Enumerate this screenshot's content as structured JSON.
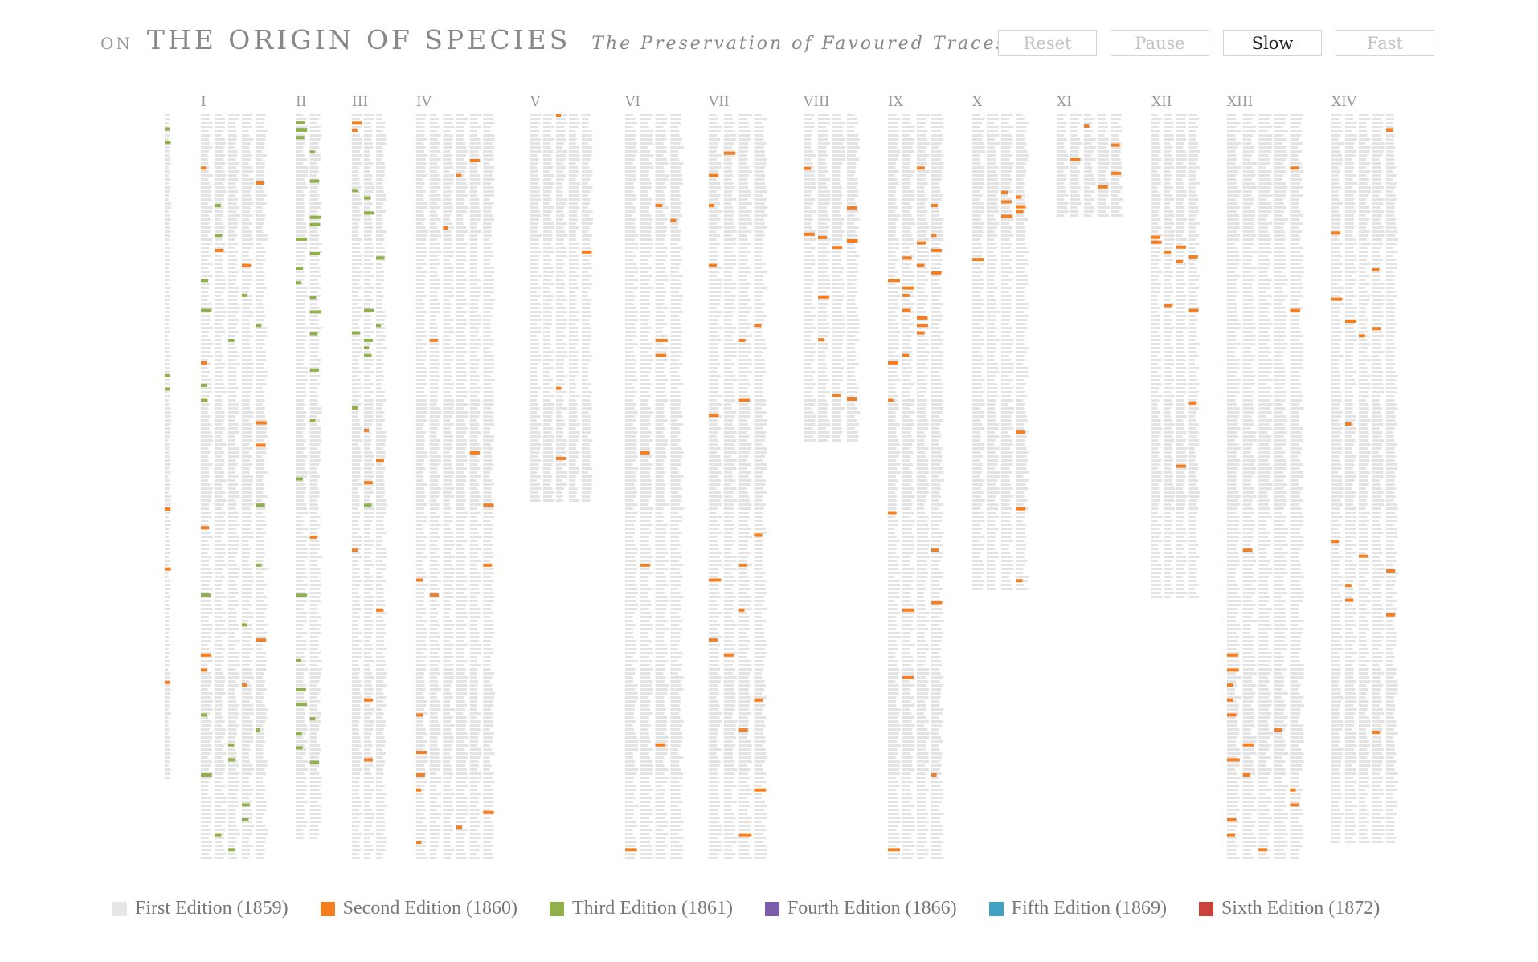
{
  "header": {
    "prefix": "ON",
    "title": "THE ORIGIN OF SPECIES",
    "subtitle": "The Preservation of Favoured Traces"
  },
  "controls": [
    {
      "label": "Reset",
      "active": false
    },
    {
      "label": "Pause",
      "active": false
    },
    {
      "label": "Slow",
      "active": true
    },
    {
      "label": "Fast",
      "active": false
    }
  ],
  "colors": {
    "unchanged": "#e3e3e3",
    "chapter_label": "#999999",
    "button_border": "#d4d4d4"
  },
  "chart_data": {
    "type": "heatmap",
    "title": "",
    "description_x": "chapters",
    "chapters": [
      {
        "label": "",
        "rel_length": 0.89,
        "changes": [
          [
            0.02,
            "third"
          ],
          [
            0.04,
            "third"
          ],
          [
            0.39,
            "third"
          ],
          [
            0.41,
            "third"
          ],
          [
            0.59,
            "second"
          ],
          [
            0.68,
            "second"
          ],
          [
            0.85,
            "second"
          ]
        ]
      },
      {
        "label": "I",
        "rel_length": 1.0,
        "changes": [
          [
            0.07,
            "second"
          ],
          [
            0.09,
            "second"
          ],
          [
            0.12,
            "third"
          ],
          [
            0.16,
            "third"
          ],
          [
            0.18,
            "second"
          ],
          [
            0.2,
            "second"
          ],
          [
            0.22,
            "third"
          ],
          [
            0.24,
            "third"
          ],
          [
            0.26,
            "third"
          ],
          [
            0.28,
            "third"
          ],
          [
            0.3,
            "third"
          ],
          [
            0.33,
            "second"
          ],
          [
            0.36,
            "third"
          ],
          [
            0.38,
            "third"
          ],
          [
            0.41,
            "second"
          ],
          [
            0.44,
            "second"
          ],
          [
            0.52,
            "third"
          ],
          [
            0.55,
            "second"
          ],
          [
            0.6,
            "third"
          ],
          [
            0.64,
            "third"
          ],
          [
            0.68,
            "third"
          ],
          [
            0.7,
            "second"
          ],
          [
            0.72,
            "second"
          ],
          [
            0.74,
            "second"
          ],
          [
            0.76,
            "second"
          ],
          [
            0.8,
            "third"
          ],
          [
            0.82,
            "third"
          ],
          [
            0.84,
            "third"
          ],
          [
            0.86,
            "third"
          ],
          [
            0.88,
            "third"
          ],
          [
            0.92,
            "third"
          ],
          [
            0.94,
            "third"
          ],
          [
            0.96,
            "third"
          ],
          [
            0.98,
            "third"
          ]
        ]
      },
      {
        "label": "II",
        "rel_length": 0.97,
        "changes": [
          [
            0.01,
            "third"
          ],
          [
            0.02,
            "third"
          ],
          [
            0.03,
            "third"
          ],
          [
            0.05,
            "third"
          ],
          [
            0.09,
            "third"
          ],
          [
            0.14,
            "third"
          ],
          [
            0.15,
            "third"
          ],
          [
            0.17,
            "third"
          ],
          [
            0.19,
            "third"
          ],
          [
            0.21,
            "third"
          ],
          [
            0.23,
            "third"
          ],
          [
            0.25,
            "third"
          ],
          [
            0.27,
            "third"
          ],
          [
            0.3,
            "third"
          ],
          [
            0.35,
            "third"
          ],
          [
            0.42,
            "third"
          ],
          [
            0.5,
            "third"
          ],
          [
            0.58,
            "second"
          ],
          [
            0.66,
            "third"
          ],
          [
            0.75,
            "third"
          ],
          [
            0.79,
            "third"
          ],
          [
            0.81,
            "third"
          ],
          [
            0.83,
            "third"
          ],
          [
            0.85,
            "third"
          ],
          [
            0.87,
            "third"
          ],
          [
            0.89,
            "third"
          ]
        ]
      },
      {
        "label": "III",
        "rel_length": 1.0,
        "changes": [
          [
            0.01,
            "second"
          ],
          [
            0.02,
            "second"
          ],
          [
            0.1,
            "third"
          ],
          [
            0.11,
            "third"
          ],
          [
            0.13,
            "third"
          ],
          [
            0.19,
            "third"
          ],
          [
            0.26,
            "third"
          ],
          [
            0.28,
            "third"
          ],
          [
            0.29,
            "third"
          ],
          [
            0.3,
            "third"
          ],
          [
            0.31,
            "third"
          ],
          [
            0.32,
            "third"
          ],
          [
            0.39,
            "third"
          ],
          [
            0.42,
            "second"
          ],
          [
            0.46,
            "second"
          ],
          [
            0.49,
            "second"
          ],
          [
            0.52,
            "third"
          ],
          [
            0.58,
            "second"
          ],
          [
            0.66,
            "second"
          ],
          [
            0.78,
            "second"
          ],
          [
            0.86,
            "second"
          ]
        ]
      },
      {
        "label": "IV",
        "rel_length": 1.0,
        "changes": [
          [
            0.06,
            "second"
          ],
          [
            0.08,
            "second"
          ],
          [
            0.15,
            "second"
          ],
          [
            0.3,
            "second"
          ],
          [
            0.45,
            "second"
          ],
          [
            0.52,
            "second"
          ],
          [
            0.6,
            "second"
          ],
          [
            0.62,
            "second"
          ],
          [
            0.64,
            "second"
          ],
          [
            0.8,
            "second"
          ],
          [
            0.85,
            "second"
          ],
          [
            0.88,
            "second"
          ],
          [
            0.9,
            "second"
          ],
          [
            0.93,
            "second"
          ],
          [
            0.95,
            "second"
          ],
          [
            0.97,
            "second"
          ]
        ]
      },
      {
        "label": "V",
        "rel_length": 0.52,
        "changes": [
          [
            0.0,
            "second"
          ],
          [
            0.35,
            "second"
          ],
          [
            0.7,
            "second"
          ],
          [
            0.88,
            "second"
          ]
        ]
      },
      {
        "label": "VI",
        "rel_length": 1.0,
        "changes": [
          [
            0.12,
            "second"
          ],
          [
            0.14,
            "second"
          ],
          [
            0.3,
            "second"
          ],
          [
            0.32,
            "second"
          ],
          [
            0.45,
            "second"
          ],
          [
            0.6,
            "second"
          ],
          [
            0.84,
            "second"
          ],
          [
            0.98,
            "second"
          ]
        ]
      },
      {
        "label": "VII",
        "rel_length": 1.0,
        "changes": [
          [
            0.05,
            "second"
          ],
          [
            0.08,
            "second"
          ],
          [
            0.12,
            "second"
          ],
          [
            0.2,
            "second"
          ],
          [
            0.28,
            "second"
          ],
          [
            0.3,
            "second"
          ],
          [
            0.38,
            "second"
          ],
          [
            0.4,
            "second"
          ],
          [
            0.56,
            "second"
          ],
          [
            0.6,
            "second"
          ],
          [
            0.62,
            "second"
          ],
          [
            0.66,
            "second"
          ],
          [
            0.7,
            "second"
          ],
          [
            0.72,
            "second"
          ],
          [
            0.78,
            "second"
          ],
          [
            0.82,
            "second"
          ],
          [
            0.9,
            "second"
          ],
          [
            0.96,
            "second"
          ]
        ]
      },
      {
        "label": "VIII",
        "rel_length": 0.44,
        "changes": [
          [
            0.16,
            "second"
          ],
          [
            0.28,
            "second"
          ],
          [
            0.36,
            "second"
          ],
          [
            0.37,
            "second"
          ],
          [
            0.38,
            "second"
          ],
          [
            0.4,
            "second"
          ],
          [
            0.55,
            "second"
          ],
          [
            0.68,
            "second"
          ],
          [
            0.85,
            "second"
          ],
          [
            0.86,
            "second"
          ]
        ]
      },
      {
        "label": "IX",
        "rel_length": 1.0,
        "changes": [
          [
            0.07,
            "second"
          ],
          [
            0.12,
            "second"
          ],
          [
            0.16,
            "second"
          ],
          [
            0.17,
            "second"
          ],
          [
            0.18,
            "second"
          ],
          [
            0.19,
            "second"
          ],
          [
            0.2,
            "second"
          ],
          [
            0.21,
            "second"
          ],
          [
            0.22,
            "second"
          ],
          [
            0.23,
            "second"
          ],
          [
            0.24,
            "second"
          ],
          [
            0.26,
            "second"
          ],
          [
            0.27,
            "second"
          ],
          [
            0.28,
            "second"
          ],
          [
            0.29,
            "second"
          ],
          [
            0.32,
            "second"
          ],
          [
            0.33,
            "second"
          ],
          [
            0.38,
            "second"
          ],
          [
            0.53,
            "second"
          ],
          [
            0.58,
            "second"
          ],
          [
            0.65,
            "second"
          ],
          [
            0.66,
            "second"
          ],
          [
            0.75,
            "second"
          ],
          [
            0.88,
            "second"
          ],
          [
            0.98,
            "second"
          ]
        ]
      },
      {
        "label": "X",
        "rel_length": 0.64,
        "changes": [
          [
            0.16,
            "second"
          ],
          [
            0.17,
            "second"
          ],
          [
            0.18,
            "second"
          ],
          [
            0.19,
            "second"
          ],
          [
            0.2,
            "second"
          ],
          [
            0.21,
            "second"
          ],
          [
            0.3,
            "second"
          ],
          [
            0.66,
            "second"
          ],
          [
            0.82,
            "second"
          ],
          [
            0.97,
            "second"
          ]
        ]
      },
      {
        "label": "XI",
        "rel_length": 0.14,
        "changes": [
          [
            0.1,
            "second"
          ],
          [
            0.28,
            "second"
          ],
          [
            0.42,
            "second"
          ],
          [
            0.55,
            "second"
          ],
          [
            0.68,
            "second"
          ]
        ]
      },
      {
        "label": "XII",
        "rel_length": 0.65,
        "changes": [
          [
            0.25,
            "second"
          ],
          [
            0.26,
            "second"
          ],
          [
            0.27,
            "second"
          ],
          [
            0.28,
            "second"
          ],
          [
            0.29,
            "second"
          ],
          [
            0.3,
            "second"
          ],
          [
            0.39,
            "second"
          ],
          [
            0.4,
            "second"
          ],
          [
            0.59,
            "second"
          ],
          [
            0.72,
            "second"
          ]
        ]
      },
      {
        "label": "XIII",
        "rel_length": 1.0,
        "changes": [
          [
            0.07,
            "second"
          ],
          [
            0.26,
            "second"
          ],
          [
            0.58,
            "second"
          ],
          [
            0.72,
            "second"
          ],
          [
            0.74,
            "second"
          ],
          [
            0.76,
            "second"
          ],
          [
            0.78,
            "second"
          ],
          [
            0.8,
            "second"
          ],
          [
            0.82,
            "second"
          ],
          [
            0.84,
            "second"
          ],
          [
            0.86,
            "second"
          ],
          [
            0.88,
            "second"
          ],
          [
            0.9,
            "second"
          ],
          [
            0.92,
            "second"
          ],
          [
            0.94,
            "second"
          ],
          [
            0.96,
            "second"
          ],
          [
            0.98,
            "second"
          ]
        ]
      },
      {
        "label": "XIV",
        "rel_length": 0.98,
        "changes": [
          [
            0.02,
            "second"
          ],
          [
            0.16,
            "second"
          ],
          [
            0.21,
            "second"
          ],
          [
            0.25,
            "second"
          ],
          [
            0.28,
            "second"
          ],
          [
            0.29,
            "second"
          ],
          [
            0.3,
            "second"
          ],
          [
            0.42,
            "second"
          ],
          [
            0.58,
            "second"
          ],
          [
            0.6,
            "second"
          ],
          [
            0.62,
            "second"
          ],
          [
            0.64,
            "second"
          ],
          [
            0.66,
            "second"
          ],
          [
            0.68,
            "second"
          ],
          [
            0.84,
            "second"
          ]
        ]
      }
    ],
    "legend": [
      {
        "key": "first",
        "label": "First Edition (1859)",
        "color": "#e6e6e6"
      },
      {
        "key": "second",
        "label": "Second Edition (1860)",
        "color": "#f57f20"
      },
      {
        "key": "third",
        "label": "Third Edition (1861)",
        "color": "#8fb04a"
      },
      {
        "key": "fourth",
        "label": "Fourth Edition (1866)",
        "color": "#7b5ca8"
      },
      {
        "key": "fifth",
        "label": "Fifth Edition (1869)",
        "color": "#3ea2c0"
      },
      {
        "key": "sixth",
        "label": "Sixth Edition (1872)",
        "color": "#c9423b"
      }
    ]
  }
}
